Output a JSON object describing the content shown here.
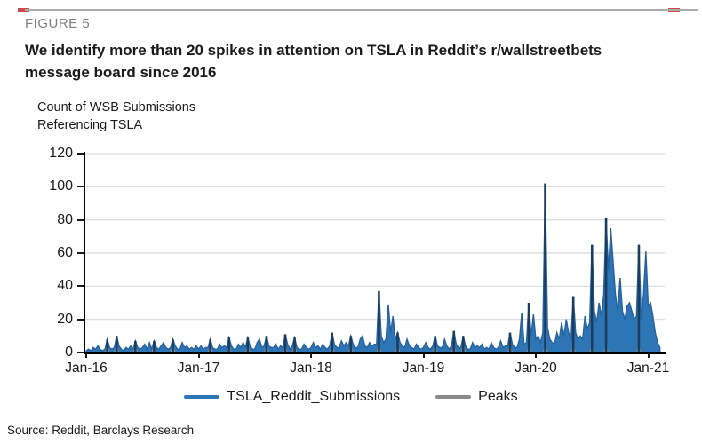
{
  "page": {
    "figure_label": "FIGURE 5",
    "title": "We identify more than 20 spikes in attention on TSLA in Reddit’s r/wallstreetbets message board since 2016",
    "axis_unit_line1": "Count of WSB Submissions",
    "axis_unit_line2": "Referencing TSLA",
    "source": "Source: Reddit, Barclays Research"
  },
  "colors": {
    "series_blue": "#2E75B6",
    "series_blue_edge": "#24619E",
    "peak_navy": "#1C3C5E",
    "peak_gray": "#8A8A8A",
    "grid": "#D9D9D9",
    "corner_red": "#CC4A4A"
  },
  "legend": [
    {
      "name": "TSLA_Reddit_Submissions",
      "color": "#2E75B6"
    },
    {
      "name": "Peaks",
      "color": "#8A8A8A"
    }
  ],
  "chart_data": {
    "type": "line",
    "title": "We identify more than 20 spikes in attention on TSLA in Reddit’s r/wallstreetbets message board since 2016",
    "xlabel": "",
    "ylabel": "Count of WSB Submissions Referencing TSLA",
    "ylim": [
      0,
      120
    ],
    "yticks": [
      0,
      20,
      40,
      60,
      80,
      100,
      120
    ],
    "xticks": [
      "Jan-16",
      "Jan-17",
      "Jan-18",
      "Jan-19",
      "Jan-20",
      "Jan-21"
    ],
    "grid": true,
    "legend_position": "bottom",
    "x_start_year": 2016,
    "points_per_year": 48,
    "series": [
      {
        "name": "TSLA_Reddit_Submissions",
        "values": [
          1,
          2,
          1,
          3,
          2,
          4,
          2,
          1,
          2,
          8,
          3,
          2,
          3,
          10,
          4,
          2,
          1,
          3,
          2,
          4,
          2,
          7,
          3,
          2,
          3,
          5,
          2,
          6,
          2,
          7,
          3,
          2,
          4,
          6,
          3,
          2,
          3,
          8,
          4,
          2,
          2,
          6,
          3,
          4,
          2,
          3,
          2,
          4,
          2,
          4,
          2,
          3,
          3,
          8,
          3,
          2,
          2,
          5,
          3,
          4,
          3,
          9,
          4,
          2,
          2,
          5,
          3,
          6,
          3,
          9,
          4,
          2,
          2,
          6,
          8,
          3,
          4,
          10,
          4,
          3,
          3,
          5,
          2,
          4,
          3,
          11,
          5,
          2,
          4,
          9,
          3,
          2,
          2,
          5,
          3,
          2,
          3,
          6,
          3,
          4,
          2,
          5,
          3,
          2,
          4,
          12,
          5,
          3,
          3,
          7,
          4,
          6,
          4,
          10,
          5,
          3,
          3,
          8,
          10,
          4,
          3,
          6,
          4,
          5,
          5,
          37,
          10,
          6,
          8,
          29,
          12,
          22,
          8,
          12,
          6,
          4,
          3,
          8,
          4,
          3,
          2,
          5,
          3,
          2,
          3,
          6,
          3,
          2,
          4,
          10,
          4,
          3,
          3,
          8,
          4,
          2,
          4,
          13,
          5,
          3,
          3,
          10,
          4,
          2,
          2,
          6,
          3,
          4,
          3,
          5,
          2,
          3,
          2,
          6,
          3,
          2,
          3,
          7,
          3,
          4,
          4,
          12,
          5,
          3,
          3,
          8,
          24,
          5,
          6,
          30,
          10,
          23,
          8,
          10,
          6,
          12,
          102,
          15,
          8,
          6,
          5,
          12,
          8,
          18,
          10,
          20,
          12,
          8,
          34,
          12,
          8,
          10,
          8,
          22,
          14,
          18,
          65,
          25,
          18,
          30,
          22,
          35,
          81,
          50,
          75,
          55,
          35,
          25,
          45,
          25,
          20,
          28,
          30,
          25,
          20,
          22,
          65,
          20,
          35,
          61,
          28,
          30,
          22,
          12,
          6,
          3
        ]
      },
      {
        "name": "Peaks",
        "marker": "base-triangle",
        "peak_points": [
          [
            9,
            8
          ],
          [
            13,
            10
          ],
          [
            21,
            7
          ],
          [
            29,
            7
          ],
          [
            37,
            8
          ],
          [
            53,
            8
          ],
          [
            61,
            9
          ],
          [
            69,
            9
          ],
          [
            77,
            10
          ],
          [
            85,
            11
          ],
          [
            89,
            9
          ],
          [
            105,
            12
          ],
          [
            113,
            10
          ],
          [
            125,
            37
          ],
          [
            133,
            12
          ],
          [
            149,
            10
          ],
          [
            157,
            13
          ],
          [
            161,
            10
          ],
          [
            181,
            12
          ],
          [
            189,
            30
          ],
          [
            196,
            102
          ],
          [
            208,
            34
          ],
          [
            216,
            65
          ],
          [
            222,
            81
          ],
          [
            236,
            65
          ]
        ]
      }
    ]
  }
}
